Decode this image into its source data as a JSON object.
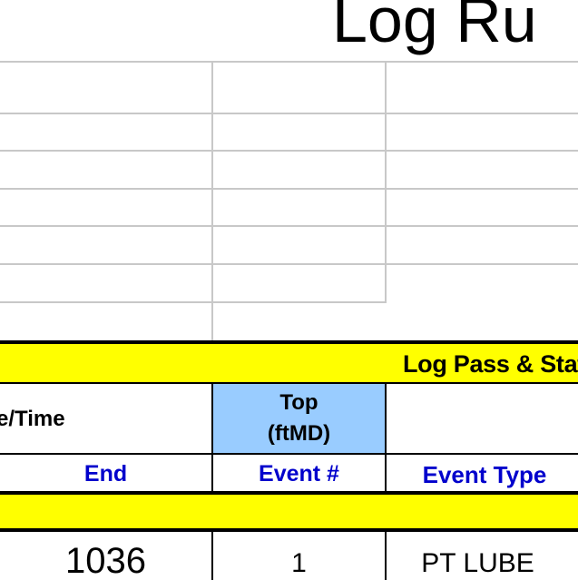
{
  "sheet": {
    "title": "Log Ru",
    "section_label": "Log Pass & Stat",
    "headers": {
      "datetime": "e/Time",
      "top_line1": "Top",
      "top_line2": "(ftMD)"
    },
    "subheaders": {
      "end": "End",
      "event_num": "Event #",
      "event_type": "Event Type"
    },
    "row1": {
      "end": "1036",
      "event_num": "1",
      "event_type": "PT LUBE"
    },
    "colors": {
      "band": "#ffff00",
      "top_header": "#99ccff",
      "subheader_text": "#0000cc",
      "grid": "#c8c8c8"
    }
  }
}
